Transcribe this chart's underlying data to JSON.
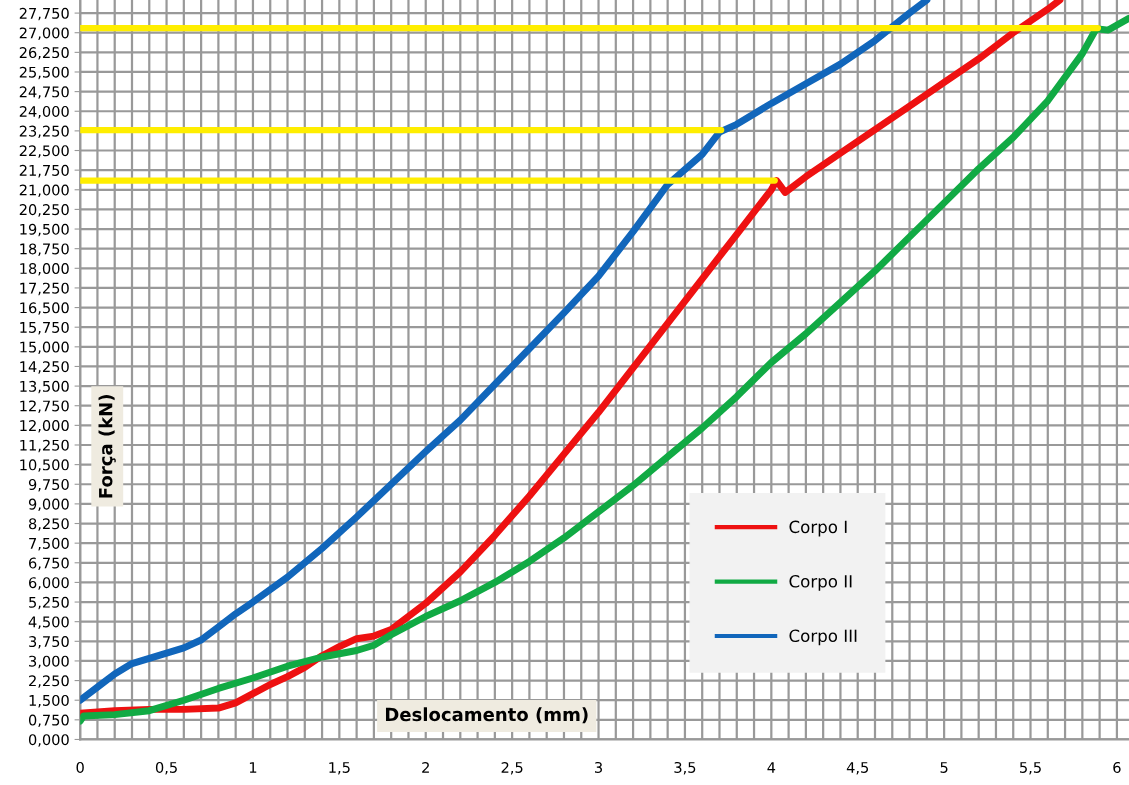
{
  "chart_data": {
    "type": "line",
    "xlabel": "Deslocamento (mm)",
    "ylabel": "Força (kN)",
    "xlim": [
      0,
      6.07
    ],
    "ylim": [
      0,
      28.25
    ],
    "xticks": [
      {
        "value": 0,
        "label": "0"
      },
      {
        "value": 0.1,
        "label": null
      },
      {
        "value": 0.2,
        "label": null
      },
      {
        "value": 0.3,
        "label": null
      },
      {
        "value": 0.4,
        "label": null
      },
      {
        "value": 0.5,
        "label": "0,5"
      },
      {
        "value": 0.6,
        "label": null
      },
      {
        "value": 0.7,
        "label": null
      },
      {
        "value": 0.8,
        "label": null
      },
      {
        "value": 0.9,
        "label": null
      },
      {
        "value": 1,
        "label": "1"
      },
      {
        "value": 1.1,
        "label": null
      },
      {
        "value": 1.2,
        "label": null
      },
      {
        "value": 1.3,
        "label": null
      },
      {
        "value": 1.4,
        "label": null
      },
      {
        "value": 1.5,
        "label": "1,5"
      },
      {
        "value": 1.6,
        "label": null
      },
      {
        "value": 1.7,
        "label": null
      },
      {
        "value": 1.8,
        "label": null
      },
      {
        "value": 1.9,
        "label": null
      },
      {
        "value": 2,
        "label": "2"
      },
      {
        "value": 2.1,
        "label": null
      },
      {
        "value": 2.2,
        "label": null
      },
      {
        "value": 2.3,
        "label": null
      },
      {
        "value": 2.4,
        "label": null
      },
      {
        "value": 2.5,
        "label": "2,5"
      },
      {
        "value": 2.6,
        "label": null
      },
      {
        "value": 2.7,
        "label": null
      },
      {
        "value": 2.8,
        "label": null
      },
      {
        "value": 2.9,
        "label": null
      },
      {
        "value": 3,
        "label": "3"
      },
      {
        "value": 3.1,
        "label": null
      },
      {
        "value": 3.2,
        "label": null
      },
      {
        "value": 3.3,
        "label": null
      },
      {
        "value": 3.4,
        "label": null
      },
      {
        "value": 3.5,
        "label": "3,5"
      },
      {
        "value": 3.6,
        "label": null
      },
      {
        "value": 3.7,
        "label": null
      },
      {
        "value": 3.8,
        "label": null
      },
      {
        "value": 3.9,
        "label": null
      },
      {
        "value": 4,
        "label": "4"
      },
      {
        "value": 4.1,
        "label": null
      },
      {
        "value": 4.2,
        "label": null
      },
      {
        "value": 4.3,
        "label": null
      },
      {
        "value": 4.4,
        "label": null
      },
      {
        "value": 4.5,
        "label": "4,5"
      },
      {
        "value": 4.6,
        "label": null
      },
      {
        "value": 4.7,
        "label": null
      },
      {
        "value": 4.8,
        "label": null
      },
      {
        "value": 4.9,
        "label": null
      },
      {
        "value": 5,
        "label": "5"
      },
      {
        "value": 5.1,
        "label": null
      },
      {
        "value": 5.2,
        "label": null
      },
      {
        "value": 5.3,
        "label": null
      },
      {
        "value": 5.4,
        "label": null
      },
      {
        "value": 5.5,
        "label": "5,5"
      },
      {
        "value": 5.6,
        "label": null
      },
      {
        "value": 5.7,
        "label": null
      },
      {
        "value": 5.8,
        "label": null
      },
      {
        "value": 5.9,
        "label": null
      },
      {
        "value": 6,
        "label": "6"
      }
    ],
    "yticks": [
      {
        "value": 0,
        "label": "0,000"
      },
      {
        "value": 0.75,
        "label": "0,750"
      },
      {
        "value": 1.5,
        "label": "1,500"
      },
      {
        "value": 2.25,
        "label": "2,250"
      },
      {
        "value": 3,
        "label": "3,000"
      },
      {
        "value": 3.75,
        "label": "3,750"
      },
      {
        "value": 4.5,
        "label": "4,500"
      },
      {
        "value": 5.25,
        "label": "5,250"
      },
      {
        "value": 6,
        "label": "6,000"
      },
      {
        "value": 6.75,
        "label": "6,750"
      },
      {
        "value": 7.5,
        "label": "7,500"
      },
      {
        "value": 8.25,
        "label": "8,250"
      },
      {
        "value": 9,
        "label": "9,000"
      },
      {
        "value": 9.75,
        "label": "9,750"
      },
      {
        "value": 10.5,
        "label": "10,500"
      },
      {
        "value": 11.25,
        "label": "11,250"
      },
      {
        "value": 12,
        "label": "12,000"
      },
      {
        "value": 12.75,
        "label": "12,750"
      },
      {
        "value": 13.5,
        "label": "13,500"
      },
      {
        "value": 14.25,
        "label": "14,250"
      },
      {
        "value": 15,
        "label": "15,000"
      },
      {
        "value": 15.75,
        "label": "15,750"
      },
      {
        "value": 16.5,
        "label": "16,500"
      },
      {
        "value": 17.25,
        "label": "17,250"
      },
      {
        "value": 18,
        "label": "18,000"
      },
      {
        "value": 18.75,
        "label": "18,750"
      },
      {
        "value": 19.5,
        "label": "19,500"
      },
      {
        "value": 20.25,
        "label": "20,250"
      },
      {
        "value": 21,
        "label": "21,000"
      },
      {
        "value": 21.75,
        "label": "21,750"
      },
      {
        "value": 22.5,
        "label": "22,500"
      },
      {
        "value": 23.25,
        "label": "23,250"
      },
      {
        "value": 24,
        "label": "24,000"
      },
      {
        "value": 24.75,
        "label": "24,750"
      },
      {
        "value": 25.5,
        "label": "25,500"
      },
      {
        "value": 26.25,
        "label": "26,250"
      },
      {
        "value": 27,
        "label": "27,000"
      },
      {
        "value": 27.75,
        "label": "27,750"
      }
    ],
    "grid": true,
    "legend": "bottom right",
    "marker": "none",
    "line_style": "solid",
    "series": [
      {
        "name": "Corpo I",
        "color": "#ee1111",
        "x": [
          0,
          0.2,
          0.4,
          0.6,
          0.8,
          0.9,
          1.0,
          1.1,
          1.2,
          1.3,
          1.4,
          1.5,
          1.6,
          1.7,
          1.8,
          2.0,
          2.2,
          2.4,
          2.6,
          2.8,
          3.0,
          3.2,
          3.4,
          3.6,
          3.8,
          4.0,
          4.03,
          4.08,
          4.2,
          4.4,
          4.6,
          4.8,
          5.0,
          5.2,
          5.4,
          5.6,
          5.67
        ],
        "values": [
          1.0,
          1.1,
          1.15,
          1.15,
          1.2,
          1.4,
          1.75,
          2.1,
          2.4,
          2.75,
          3.2,
          3.55,
          3.85,
          3.95,
          4.2,
          5.2,
          6.4,
          7.8,
          9.3,
          10.9,
          12.5,
          14.2,
          15.9,
          17.6,
          19.3,
          21.0,
          21.35,
          20.9,
          21.5,
          22.4,
          23.3,
          24.2,
          25.1,
          26.0,
          27.0,
          27.9,
          28.25
        ]
      },
      {
        "name": "Corpo II",
        "color": "#11aa44",
        "x": [
          0,
          0.02,
          0.2,
          0.4,
          0.6,
          0.8,
          1.0,
          1.2,
          1.4,
          1.6,
          1.7,
          1.8,
          2.0,
          2.2,
          2.4,
          2.6,
          2.8,
          3.0,
          3.2,
          3.4,
          3.6,
          3.8,
          4.0,
          4.2,
          4.4,
          4.6,
          4.8,
          5.0,
          5.2,
          5.4,
          5.6,
          5.8,
          5.88,
          5.95,
          6.07
        ],
        "values": [
          0.7,
          0.9,
          0.95,
          1.1,
          1.5,
          1.95,
          2.35,
          2.8,
          3.15,
          3.4,
          3.6,
          4.0,
          4.7,
          5.3,
          6.0,
          6.8,
          7.7,
          8.7,
          9.7,
          10.8,
          11.9,
          13.1,
          14.4,
          15.5,
          16.7,
          17.9,
          19.2,
          20.5,
          21.8,
          23.0,
          24.4,
          26.2,
          27.15,
          27.1,
          27.55
        ]
      },
      {
        "name": "Corpo III",
        "color": "#1166bb",
        "x": [
          0,
          0.1,
          0.2,
          0.3,
          0.4,
          0.5,
          0.6,
          0.7,
          0.8,
          0.9,
          1.0,
          1.2,
          1.4,
          1.6,
          1.8,
          2.0,
          2.2,
          2.5,
          2.8,
          3.0,
          3.2,
          3.4,
          3.6,
          3.7,
          3.8,
          4.0,
          4.2,
          4.4,
          4.6,
          4.8,
          4.9
        ],
        "values": [
          1.5,
          2.0,
          2.5,
          2.9,
          3.1,
          3.3,
          3.5,
          3.8,
          4.3,
          4.8,
          5.25,
          6.2,
          7.3,
          8.5,
          9.75,
          11.0,
          12.2,
          14.25,
          16.3,
          17.7,
          19.4,
          21.2,
          22.35,
          23.2,
          23.5,
          24.3,
          25.05,
          25.8,
          26.7,
          27.75,
          28.25
        ]
      },
      {
        "color": "#ffee00",
        "x": [
          0,
          5.89
        ],
        "values": [
          27.18,
          27.18
        ]
      },
      {
        "color": "#ffee00",
        "x": [
          0,
          3.71
        ],
        "values": [
          23.28,
          23.28
        ]
      },
      {
        "color": "#ffee00",
        "x": [
          0,
          4.02
        ],
        "values": [
          21.35,
          21.35
        ]
      }
    ]
  }
}
